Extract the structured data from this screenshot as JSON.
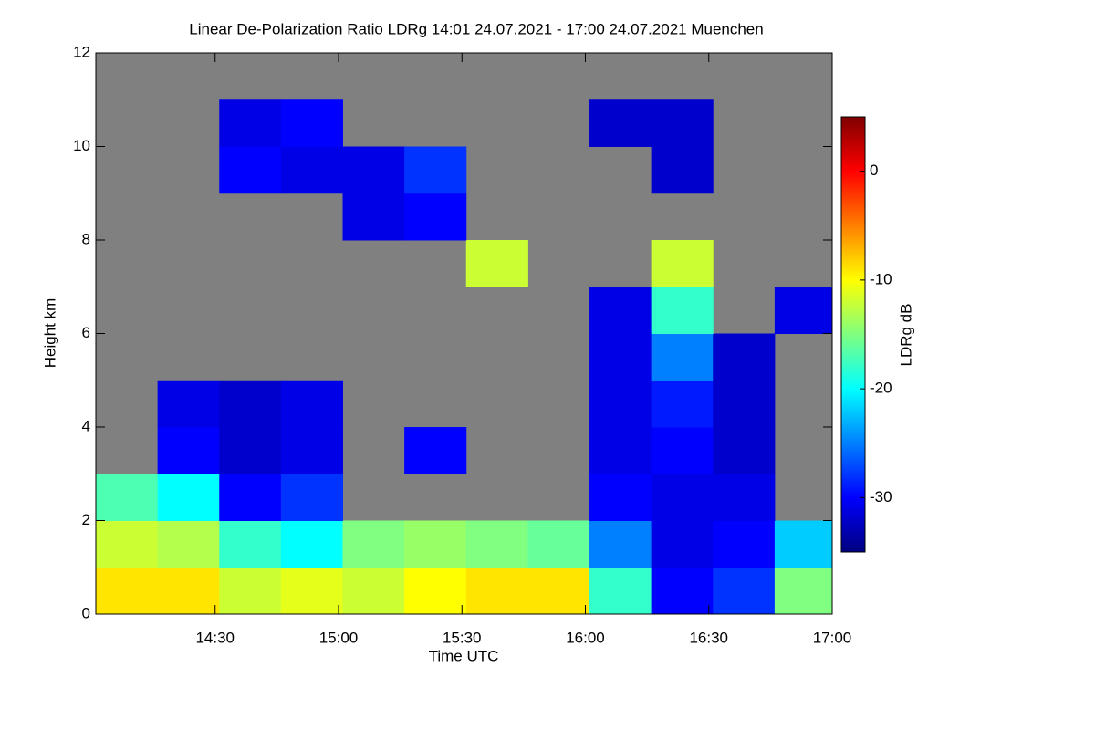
{
  "chart_data": {
    "type": "heatmap",
    "title": "Linear De-Polarization Ratio LDRg   14:01 24.07.2021 - 17:00 24.07.2021 Muenchen",
    "xlabel": "Time UTC",
    "ylabel": "Height km",
    "colorbar_label": "LDRg dB",
    "xlim": [
      841,
      1020
    ],
    "ylim": [
      0,
      12
    ],
    "zlim": [
      -35,
      5
    ],
    "xticks": [
      {
        "value": 870,
        "label": "14:30"
      },
      {
        "value": 900,
        "label": "15:00"
      },
      {
        "value": 930,
        "label": "15:30"
      },
      {
        "value": 960,
        "label": "16:00"
      },
      {
        "value": 990,
        "label": "16:30"
      },
      {
        "value": 1020,
        "label": "17:00"
      }
    ],
    "yticks": [
      0,
      2,
      4,
      6,
      8,
      10,
      12
    ],
    "zticks": [
      0,
      -10,
      -20,
      -30
    ],
    "x_edges": [
      841,
      856,
      871,
      886,
      901,
      916,
      931,
      946,
      961,
      976,
      991,
      1006,
      1020
    ],
    "y_edges": [
      0,
      1,
      2,
      3,
      4,
      5,
      6,
      7,
      8,
      9,
      10,
      11,
      12
    ],
    "background_color": "#808080",
    "colormap": "jet",
    "z": [
      [
        -9,
        -9,
        -12,
        -11,
        -12,
        -10,
        -9,
        -9,
        -18,
        -30,
        -28,
        -15
      ],
      [
        -12,
        -13,
        -18,
        -20,
        -15,
        -14,
        -15,
        -16,
        -25,
        -31,
        -30,
        -22
      ],
      [
        -17,
        -20,
        -30,
        -28,
        null,
        null,
        null,
        null,
        -30,
        -31,
        -31,
        null
      ],
      [
        null,
        -30,
        -32,
        -31,
        null,
        -30,
        null,
        null,
        -31,
        -30,
        -32,
        null
      ],
      [
        null,
        -31,
        -32,
        -31,
        null,
        null,
        null,
        null,
        -31,
        -29,
        -32,
        null
      ],
      [
        null,
        null,
        null,
        null,
        null,
        null,
        null,
        null,
        -31,
        -25,
        -32,
        null
      ],
      [
        null,
        null,
        null,
        null,
        null,
        null,
        null,
        null,
        -31,
        -18,
        null,
        -31
      ],
      [
        null,
        null,
        null,
        null,
        null,
        null,
        -12,
        null,
        null,
        -12,
        null,
        null
      ],
      [
        null,
        null,
        null,
        null,
        -31,
        -30,
        null,
        null,
        null,
        null,
        null,
        null
      ],
      [
        null,
        null,
        -30,
        -31,
        -31,
        -28,
        null,
        null,
        null,
        -32,
        null,
        null
      ],
      [
        null,
        null,
        -31,
        -30,
        null,
        null,
        null,
        null,
        -32,
        -32,
        null,
        null
      ],
      [
        null,
        null,
        null,
        null,
        null,
        null,
        null,
        null,
        null,
        null,
        null,
        null
      ]
    ]
  }
}
